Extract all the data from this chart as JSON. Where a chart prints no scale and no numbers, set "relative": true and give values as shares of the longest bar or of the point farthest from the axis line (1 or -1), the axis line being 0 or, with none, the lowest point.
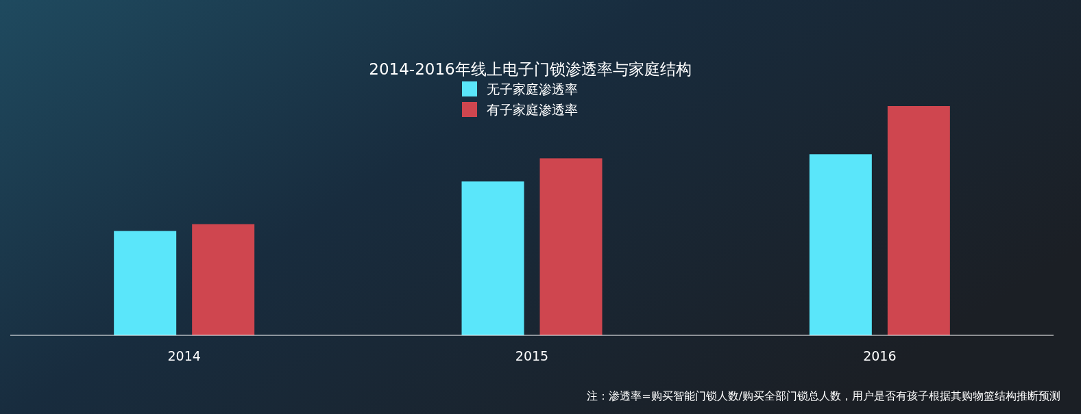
{
  "chart_data": {
    "type": "bar",
    "title": "2014-2016年线上电子门锁渗透率与家庭结构",
    "categories": [
      "2014",
      "2015",
      "2016"
    ],
    "relative": true,
    "legend": "top",
    "series": [
      {
        "name": "无子家庭渗透率",
        "color": "#5ae6fa",
        "values": [
          0.455,
          0.671,
          0.79
        ]
      },
      {
        "name": "有子家庭渗透率",
        "color": "#cf464f",
        "values": [
          0.485,
          0.772,
          1
        ]
      }
    ],
    "annotations": [
      "注：渗透率=购买智能门锁人数/购买全部门锁总人数，用户是否有孩子根据其购物篮结构推断预测"
    ]
  }
}
